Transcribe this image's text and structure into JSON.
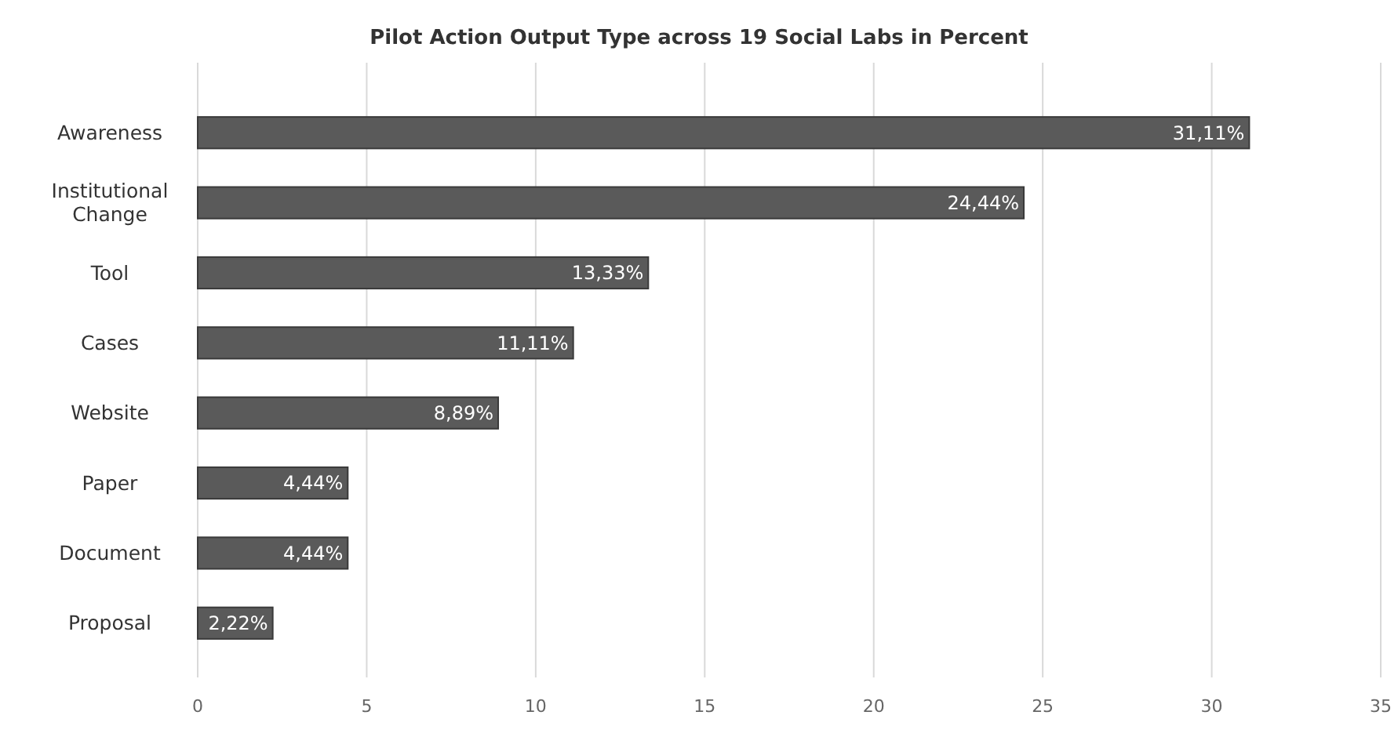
{
  "chart_data": {
    "type": "bar",
    "orientation": "horizontal",
    "title": "Pilot Action Output Type across 19 Social Labs in Percent",
    "categories": [
      "Awareness",
      "Institutional Change",
      "Tool",
      "Cases",
      "Website",
      "Paper",
      "Document",
      "Proposal"
    ],
    "values": [
      31.11,
      24.44,
      13.33,
      11.11,
      8.89,
      4.44,
      4.44,
      2.22
    ],
    "value_labels": [
      "31,11%",
      "24,44%",
      "13,33%",
      "11,11%",
      "8,89%",
      "4,44%",
      "4,44%",
      "2,22%"
    ],
    "color": "#5a5a5a",
    "xlim": [
      0,
      35
    ],
    "xticks": [
      0,
      5,
      10,
      15,
      20,
      25,
      30,
      35
    ],
    "grid": "x"
  }
}
